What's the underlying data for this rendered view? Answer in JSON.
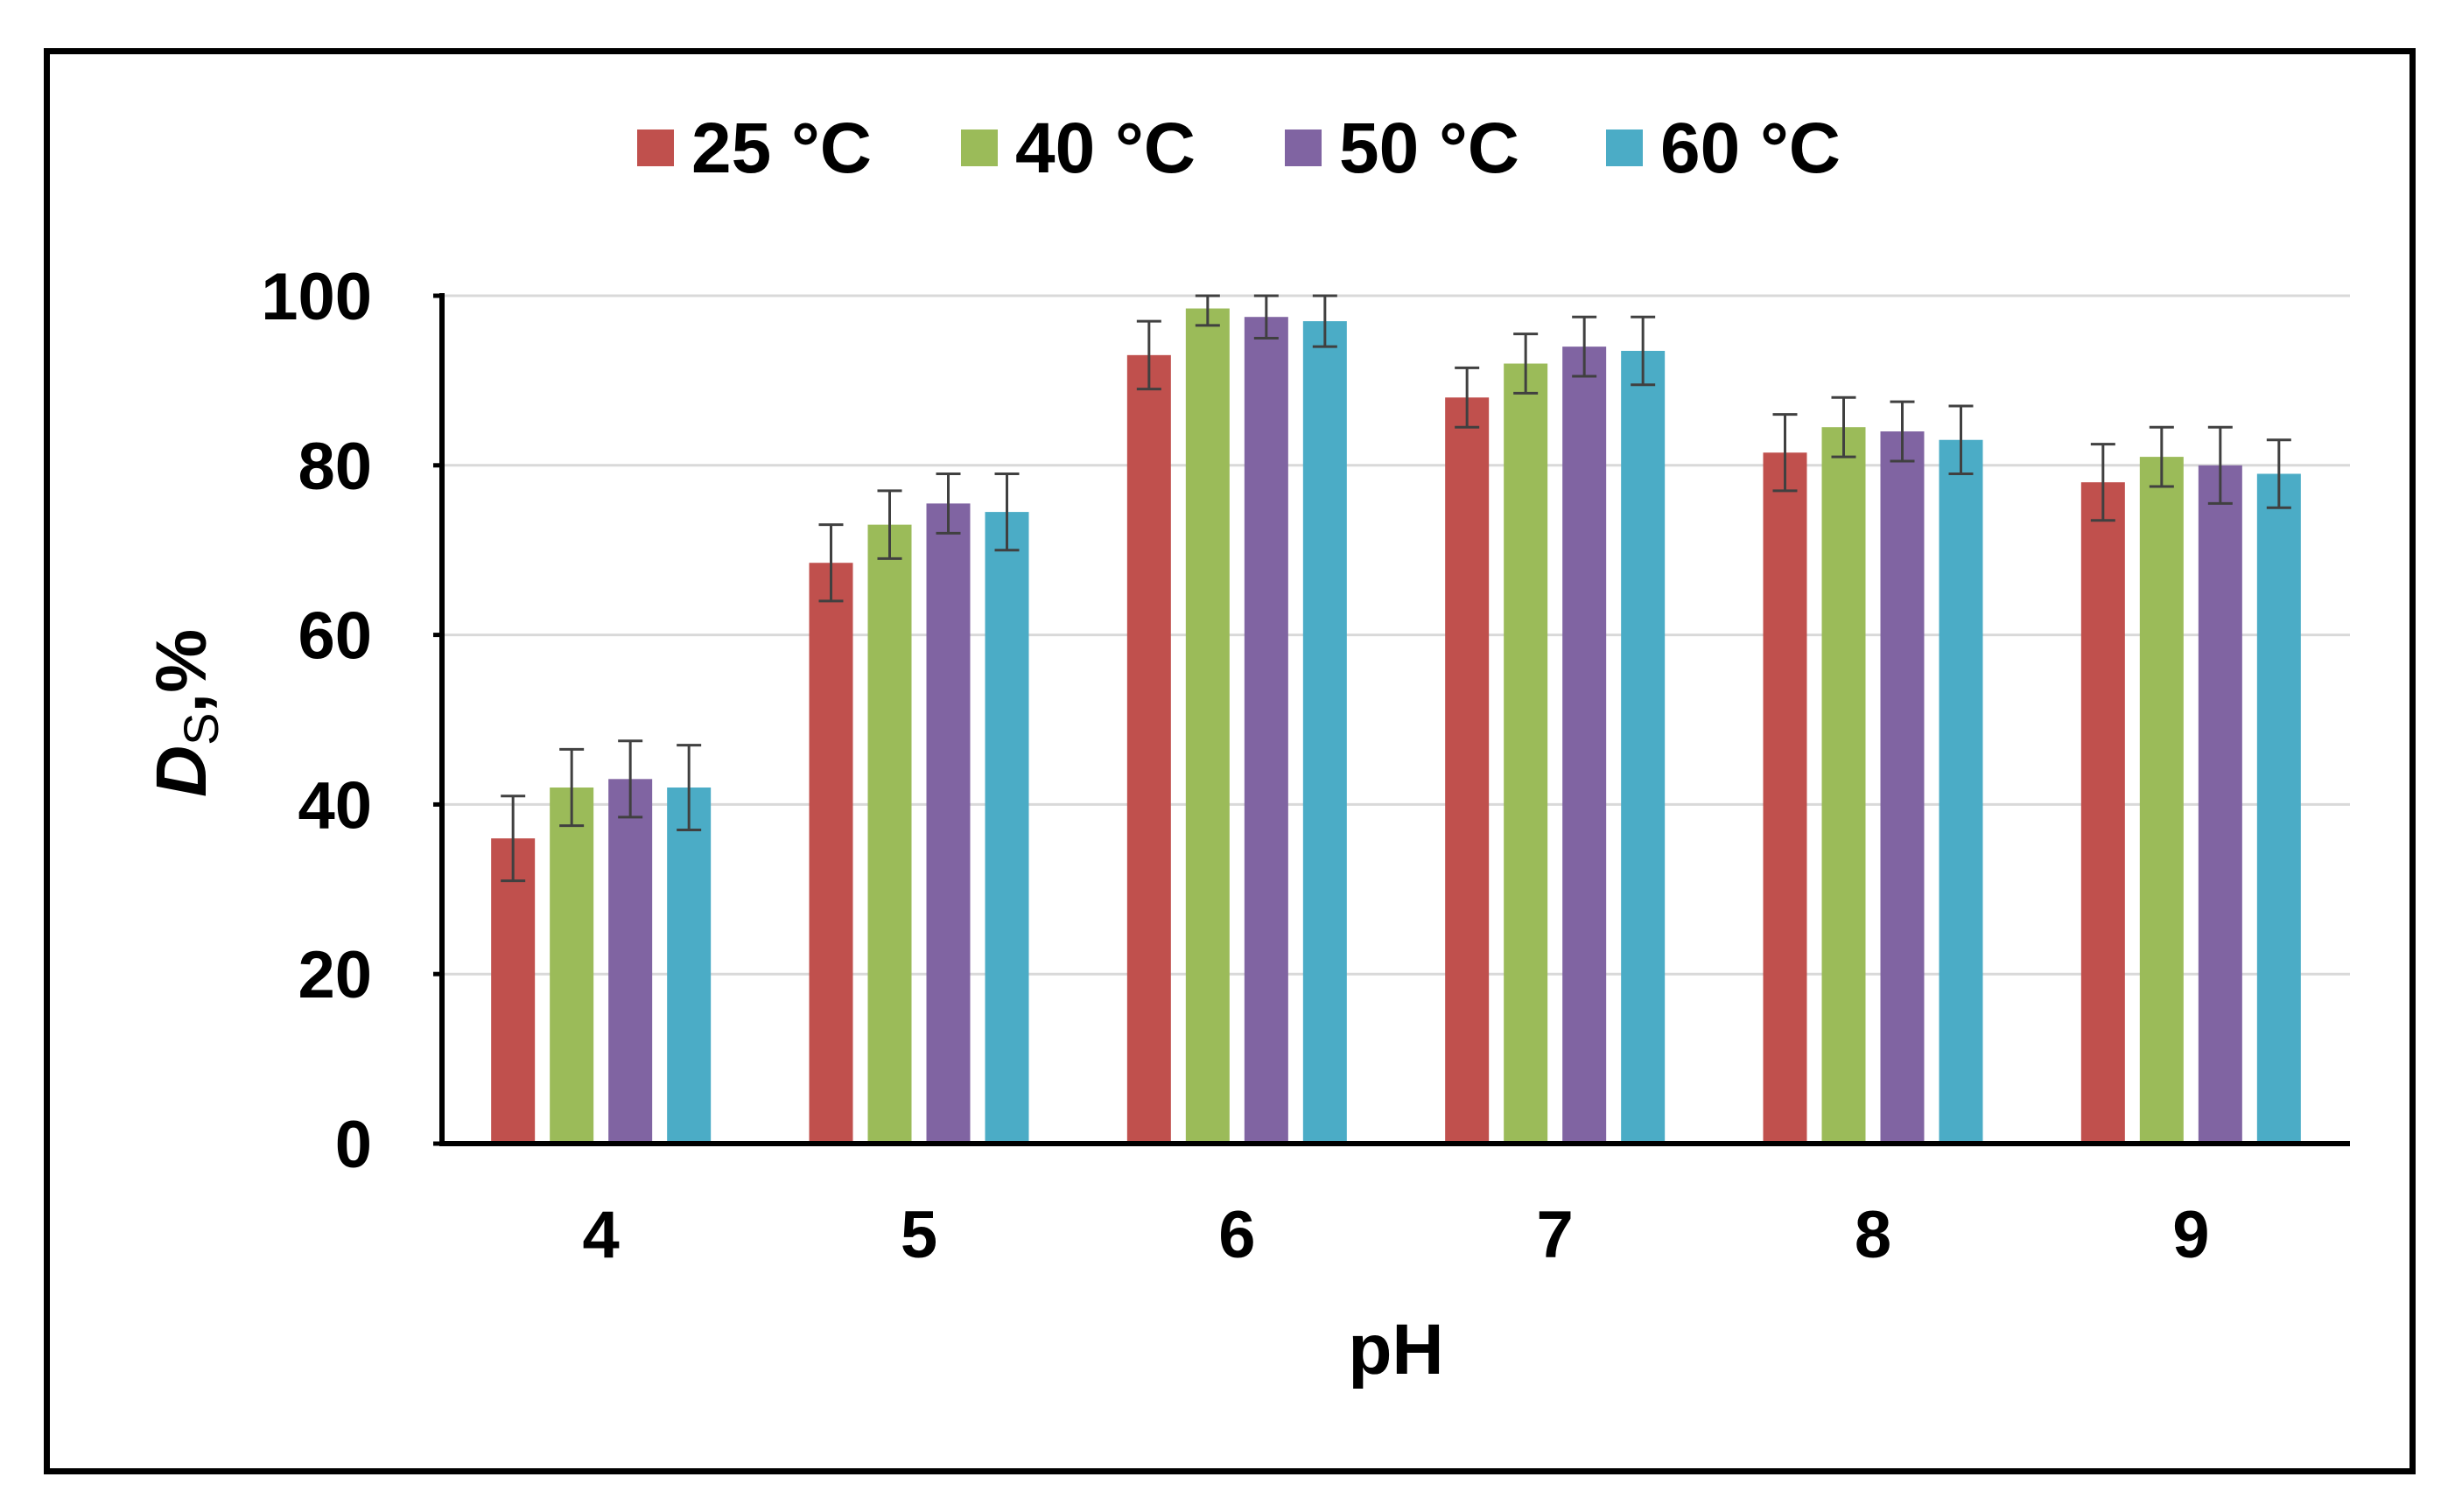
{
  "chart_data": {
    "type": "bar",
    "title": "",
    "xlabel": "pH",
    "ylabel": {
      "symbol": "D",
      "subscript": "S",
      "suffix": ",%"
    },
    "categories": [
      "4",
      "5",
      "6",
      "7",
      "8",
      "9"
    ],
    "ylim": [
      0,
      100
    ],
    "yticks": [
      "0",
      "20",
      "40",
      "60",
      "80",
      "100"
    ],
    "grid": true,
    "legend_position": "top",
    "series": [
      {
        "name": "25 °C",
        "color": "#C0504D",
        "values": [
          36,
          68.5,
          93,
          88,
          81.5,
          78
        ],
        "errors": [
          5,
          4.5,
          4,
          3.5,
          4.5,
          4.5
        ]
      },
      {
        "name": "40 °C",
        "color": "#9BBB59",
        "values": [
          42,
          73,
          98.5,
          92,
          84.5,
          81
        ],
        "errors": [
          4.5,
          4,
          2,
          3.5,
          3.5,
          3.5
        ]
      },
      {
        "name": "50 °C",
        "color": "#8064A2",
        "values": [
          43,
          75.5,
          97.5,
          94,
          84,
          80
        ],
        "errors": [
          4.5,
          3.5,
          2.5,
          3.5,
          3.5,
          4.5
        ]
      },
      {
        "name": "60 °C",
        "color": "#4BACC6",
        "values": [
          42,
          74.5,
          97,
          93.5,
          83,
          79
        ],
        "errors": [
          5,
          4.5,
          3,
          4,
          4,
          4
        ]
      }
    ]
  }
}
